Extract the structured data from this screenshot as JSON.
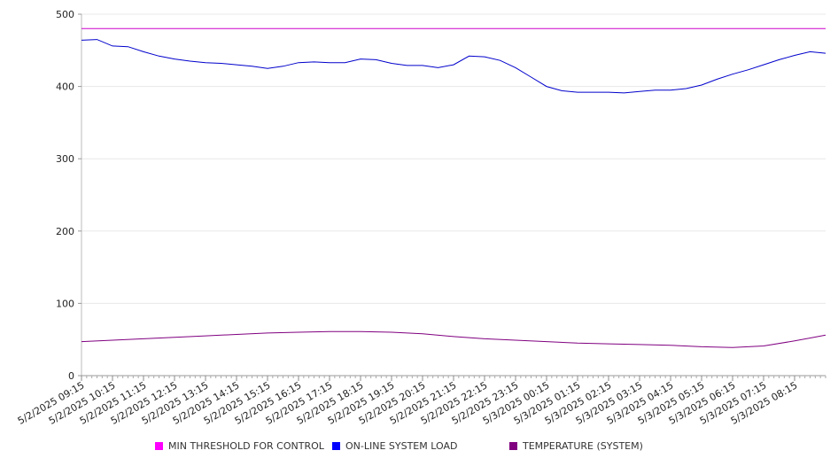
{
  "chart_data": {
    "type": "line",
    "title": "",
    "xlabel": "",
    "ylabel": "",
    "ylim": [
      0,
      500
    ],
    "yticks": [
      0,
      100,
      200,
      300,
      400,
      500
    ],
    "grid": true,
    "legend_position": "bottom",
    "x_ticks": [
      "5/2/2025 09:15",
      "5/2/2025 10:15",
      "5/2/2025 11:15",
      "5/2/2025 12:15",
      "5/2/2025 13:15",
      "5/2/2025 14:15",
      "5/2/2025 15:15",
      "5/2/2025 16:15",
      "5/2/2025 17:15",
      "5/2/2025 18:15",
      "5/2/2025 19:15",
      "5/2/2025 20:15",
      "5/2/2025 21:15",
      "5/2/2025 22:15",
      "5/2/2025 23:15",
      "5/3/2025 00:15",
      "5/3/2025 01:15",
      "5/3/2025 02:15",
      "5/3/2025 03:15",
      "5/3/2025 04:15",
      "5/3/2025 05:15",
      "5/3/2025 06:15",
      "5/3/2025 07:15",
      "5/3/2025 08:15"
    ],
    "x_range": [
      "5/2/2025 09:15",
      "5/3/2025 09:15"
    ],
    "series": [
      {
        "name": "MIN THRESHOLD FOR CONTROL",
        "color": "#cc00cc",
        "x": [
          "5/2/2025 09:15",
          "5/3/2025 09:15"
        ],
        "values": [
          480,
          480
        ]
      },
      {
        "name": "ON-LINE SYSTEM LOAD",
        "color": "#0000cc",
        "x": [
          "5/2/2025 09:15",
          "5/2/2025 09:45",
          "5/2/2025 10:15",
          "5/2/2025 10:45",
          "5/2/2025 11:15",
          "5/2/2025 11:45",
          "5/2/2025 12:15",
          "5/2/2025 12:45",
          "5/2/2025 13:15",
          "5/2/2025 13:45",
          "5/2/2025 14:15",
          "5/2/2025 14:45",
          "5/2/2025 15:15",
          "5/2/2025 15:45",
          "5/2/2025 16:15",
          "5/2/2025 16:45",
          "5/2/2025 17:15",
          "5/2/2025 17:45",
          "5/2/2025 18:15",
          "5/2/2025 18:45",
          "5/2/2025 19:15",
          "5/2/2025 19:45",
          "5/2/2025 20:15",
          "5/2/2025 20:45",
          "5/2/2025 21:15",
          "5/2/2025 21:45",
          "5/2/2025 22:15",
          "5/2/2025 22:45",
          "5/2/2025 23:15",
          "5/2/2025 23:45",
          "5/3/2025 00:15",
          "5/3/2025 00:45",
          "5/3/2025 01:15",
          "5/3/2025 01:45",
          "5/3/2025 02:15",
          "5/3/2025 02:45",
          "5/3/2025 03:15",
          "5/3/2025 03:45",
          "5/3/2025 04:15",
          "5/3/2025 04:45",
          "5/3/2025 05:15",
          "5/3/2025 05:45",
          "5/3/2025 06:15",
          "5/3/2025 06:45",
          "5/3/2025 07:15",
          "5/3/2025 07:45",
          "5/3/2025 08:15",
          "5/3/2025 08:45",
          "5/3/2025 09:15"
        ],
        "values": [
          464,
          465,
          456,
          455,
          448,
          442,
          438,
          435,
          433,
          432,
          430,
          428,
          425,
          428,
          433,
          434,
          433,
          433,
          438,
          437,
          432,
          429,
          429,
          426,
          430,
          442,
          441,
          436,
          426,
          413,
          400,
          394,
          392,
          392,
          392,
          391,
          393,
          395,
          395,
          397,
          402,
          410,
          417,
          423,
          430,
          437,
          443,
          448,
          446
        ]
      },
      {
        "name": "TEMPERATURE (SYSTEM)",
        "color": "#800080",
        "x": [
          "5/2/2025 09:15",
          "5/2/2025 10:15",
          "5/2/2025 11:15",
          "5/2/2025 12:15",
          "5/2/2025 13:15",
          "5/2/2025 14:15",
          "5/2/2025 15:15",
          "5/2/2025 16:15",
          "5/2/2025 17:15",
          "5/2/2025 18:15",
          "5/2/2025 19:15",
          "5/2/2025 20:15",
          "5/2/2025 21:15",
          "5/2/2025 22:15",
          "5/2/2025 23:15",
          "5/3/2025 00:15",
          "5/3/2025 01:15",
          "5/3/2025 02:15",
          "5/3/2025 03:15",
          "5/3/2025 04:15",
          "5/3/2025 05:15",
          "5/3/2025 06:15",
          "5/3/2025 07:15",
          "5/3/2025 08:15",
          "5/3/2025 09:15"
        ],
        "values": [
          47,
          49,
          51,
          53,
          55,
          57,
          59,
          60,
          61,
          61,
          60,
          58,
          54,
          51,
          49,
          47,
          45,
          44,
          43,
          42,
          40,
          39,
          41,
          48,
          56
        ]
      }
    ]
  }
}
